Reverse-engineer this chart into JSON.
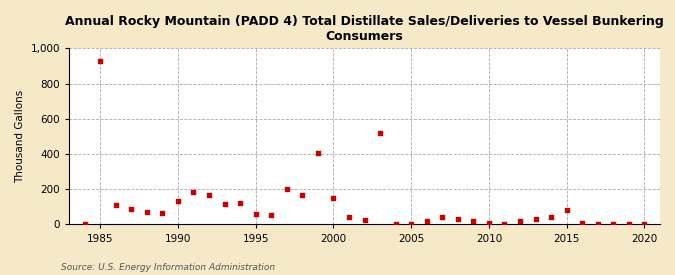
{
  "title": "Annual Rocky Mountain (PADD 4) Total Distillate Sales/Deliveries to Vessel Bunkering\nConsumers",
  "ylabel": "Thousand Gallons",
  "source": "Source: U.S. Energy Information Administration",
  "figure_bg": "#f5e9c8",
  "axes_bg": "#ffffff",
  "marker_color": "#cc0000",
  "years": [
    1984,
    1985,
    1986,
    1987,
    1988,
    1989,
    1990,
    1991,
    1992,
    1993,
    1994,
    1995,
    1996,
    1997,
    1998,
    1999,
    2000,
    2001,
    2002,
    2003,
    2004,
    2005,
    2006,
    2007,
    2008,
    2009,
    2010,
    2011,
    2012,
    2013,
    2014,
    2015,
    2016,
    2017,
    2018,
    2019,
    2020
  ],
  "values": [
    0,
    930,
    110,
    90,
    70,
    65,
    135,
    185,
    170,
    115,
    120,
    60,
    55,
    200,
    170,
    405,
    150,
    45,
    25,
    520,
    5,
    5,
    20,
    40,
    30,
    20,
    10,
    5,
    20,
    30,
    40,
    80,
    10,
    5,
    5,
    5,
    2
  ],
  "xlim": [
    1983,
    2021
  ],
  "ylim": [
    0,
    1000
  ],
  "yticks": [
    0,
    200,
    400,
    600,
    800,
    1000
  ],
  "xticks": [
    1985,
    1990,
    1995,
    2000,
    2005,
    2010,
    2015,
    2020
  ],
  "title_fontsize": 9,
  "ylabel_fontsize": 7.5,
  "tick_fontsize": 7.5,
  "source_fontsize": 6.5,
  "marker_size": 10
}
